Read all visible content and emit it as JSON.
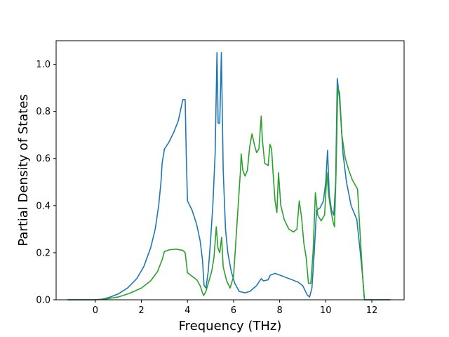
{
  "chart_data": {
    "type": "line",
    "xlabel": "Frequency (THz)",
    "ylabel": "Partial Density of States",
    "xlim": [
      -1.7,
      13.4
    ],
    "ylim": [
      0,
      1.1
    ],
    "grid": false,
    "x_ticks": [
      0,
      2,
      4,
      6,
      8,
      10,
      12
    ],
    "x_tick_labels": [
      "0",
      "2",
      "4",
      "6",
      "8",
      "10",
      "12"
    ],
    "y_ticks": [
      0.0,
      0.2,
      0.4,
      0.6,
      0.8,
      1.0
    ],
    "y_tick_labels": [
      "0.0",
      "0.2",
      "0.4",
      "0.6",
      "0.8",
      "1.0"
    ],
    "series": [
      {
        "color": "#1f77b4",
        "points": [
          [
            -1.2,
            0
          ],
          [
            0.0,
            0
          ],
          [
            0.3,
            0.003
          ],
          [
            0.6,
            0.01
          ],
          [
            1.0,
            0.025
          ],
          [
            1.4,
            0.05
          ],
          [
            1.8,
            0.09
          ],
          [
            2.1,
            0.14
          ],
          [
            2.4,
            0.22
          ],
          [
            2.6,
            0.3
          ],
          [
            2.75,
            0.4
          ],
          [
            2.85,
            0.5
          ],
          [
            2.9,
            0.58
          ],
          [
            3.0,
            0.64
          ],
          [
            3.2,
            0.67
          ],
          [
            3.4,
            0.71
          ],
          [
            3.6,
            0.76
          ],
          [
            3.8,
            0.85
          ],
          [
            3.9,
            0.85
          ],
          [
            3.95,
            0.6
          ],
          [
            4.0,
            0.42
          ],
          [
            4.2,
            0.38
          ],
          [
            4.4,
            0.32
          ],
          [
            4.55,
            0.25
          ],
          [
            4.65,
            0.17
          ],
          [
            4.72,
            0.06
          ],
          [
            4.8,
            0.05
          ],
          [
            4.9,
            0.12
          ],
          [
            5.0,
            0.25
          ],
          [
            5.1,
            0.4
          ],
          [
            5.2,
            0.62
          ],
          [
            5.28,
            1.05
          ],
          [
            5.33,
            0.75
          ],
          [
            5.4,
            0.75
          ],
          [
            5.47,
            1.05
          ],
          [
            5.55,
            0.55
          ],
          [
            5.65,
            0.3
          ],
          [
            5.75,
            0.2
          ],
          [
            5.9,
            0.12
          ],
          [
            6.05,
            0.07
          ],
          [
            6.25,
            0.035
          ],
          [
            6.5,
            0.03
          ],
          [
            6.7,
            0.035
          ],
          [
            7.0,
            0.06
          ],
          [
            7.2,
            0.09
          ],
          [
            7.3,
            0.08
          ],
          [
            7.5,
            0.085
          ],
          [
            7.6,
            0.105
          ],
          [
            7.8,
            0.112
          ],
          [
            8.0,
            0.105
          ],
          [
            8.4,
            0.09
          ],
          [
            8.8,
            0.075
          ],
          [
            9.0,
            0.06
          ],
          [
            9.2,
            0.02
          ],
          [
            9.3,
            0.012
          ],
          [
            9.4,
            0.05
          ],
          [
            9.5,
            0.2
          ],
          [
            9.6,
            0.38
          ],
          [
            9.75,
            0.39
          ],
          [
            9.9,
            0.42
          ],
          [
            10.0,
            0.5
          ],
          [
            10.08,
            0.635
          ],
          [
            10.15,
            0.45
          ],
          [
            10.25,
            0.38
          ],
          [
            10.35,
            0.36
          ],
          [
            10.43,
            0.5
          ],
          [
            10.5,
            0.94
          ],
          [
            10.6,
            0.85
          ],
          [
            10.75,
            0.62
          ],
          [
            10.9,
            0.5
          ],
          [
            11.1,
            0.4
          ],
          [
            11.35,
            0.34
          ],
          [
            11.5,
            0.2
          ],
          [
            11.6,
            0.1
          ],
          [
            11.68,
            0.0
          ],
          [
            12.8,
            0.0
          ]
        ]
      },
      {
        "color": "#2ca02c",
        "points": [
          [
            -1.2,
            0
          ],
          [
            0.0,
            0
          ],
          [
            0.5,
            0.004
          ],
          [
            1.0,
            0.012
          ],
          [
            1.5,
            0.028
          ],
          [
            2.0,
            0.05
          ],
          [
            2.4,
            0.08
          ],
          [
            2.7,
            0.12
          ],
          [
            2.9,
            0.17
          ],
          [
            3.0,
            0.205
          ],
          [
            3.2,
            0.212
          ],
          [
            3.5,
            0.215
          ],
          [
            3.8,
            0.21
          ],
          [
            3.9,
            0.2
          ],
          [
            4.0,
            0.115
          ],
          [
            4.2,
            0.1
          ],
          [
            4.4,
            0.085
          ],
          [
            4.55,
            0.06
          ],
          [
            4.65,
            0.03
          ],
          [
            4.7,
            0.018
          ],
          [
            4.8,
            0.035
          ],
          [
            4.9,
            0.07
          ],
          [
            5.05,
            0.12
          ],
          [
            5.15,
            0.18
          ],
          [
            5.25,
            0.31
          ],
          [
            5.32,
            0.22
          ],
          [
            5.4,
            0.2
          ],
          [
            5.48,
            0.265
          ],
          [
            5.55,
            0.14
          ],
          [
            5.7,
            0.08
          ],
          [
            5.85,
            0.05
          ],
          [
            6.0,
            0.1
          ],
          [
            6.1,
            0.25
          ],
          [
            6.2,
            0.4
          ],
          [
            6.3,
            0.55
          ],
          [
            6.33,
            0.62
          ],
          [
            6.4,
            0.55
          ],
          [
            6.5,
            0.525
          ],
          [
            6.6,
            0.55
          ],
          [
            6.7,
            0.65
          ],
          [
            6.8,
            0.705
          ],
          [
            6.9,
            0.66
          ],
          [
            7.0,
            0.625
          ],
          [
            7.1,
            0.64
          ],
          [
            7.2,
            0.78
          ],
          [
            7.25,
            0.68
          ],
          [
            7.35,
            0.58
          ],
          [
            7.5,
            0.57
          ],
          [
            7.58,
            0.66
          ],
          [
            7.65,
            0.64
          ],
          [
            7.72,
            0.53
          ],
          [
            7.8,
            0.42
          ],
          [
            7.88,
            0.37
          ],
          [
            7.95,
            0.54
          ],
          [
            8.05,
            0.4
          ],
          [
            8.2,
            0.34
          ],
          [
            8.4,
            0.3
          ],
          [
            8.6,
            0.288
          ],
          [
            8.75,
            0.3
          ],
          [
            8.85,
            0.42
          ],
          [
            8.95,
            0.35
          ],
          [
            9.05,
            0.24
          ],
          [
            9.15,
            0.18
          ],
          [
            9.25,
            0.07
          ],
          [
            9.35,
            0.07
          ],
          [
            9.45,
            0.2
          ],
          [
            9.55,
            0.455
          ],
          [
            9.65,
            0.36
          ],
          [
            9.8,
            0.335
          ],
          [
            9.95,
            0.36
          ],
          [
            10.05,
            0.54
          ],
          [
            10.12,
            0.45
          ],
          [
            10.22,
            0.38
          ],
          [
            10.32,
            0.33
          ],
          [
            10.38,
            0.31
          ],
          [
            10.45,
            0.55
          ],
          [
            10.52,
            0.9
          ],
          [
            10.6,
            0.88
          ],
          [
            10.7,
            0.7
          ],
          [
            10.85,
            0.6
          ],
          [
            11.0,
            0.55
          ],
          [
            11.15,
            0.51
          ],
          [
            11.38,
            0.47
          ],
          [
            11.48,
            0.3
          ],
          [
            11.6,
            0.1
          ],
          [
            11.68,
            0.0
          ],
          [
            12.8,
            0.0
          ]
        ]
      }
    ]
  }
}
